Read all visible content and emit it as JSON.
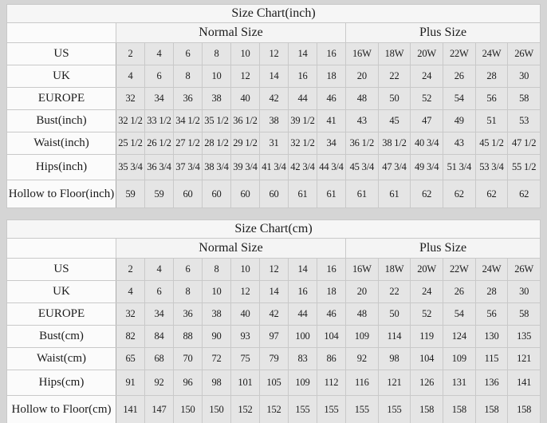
{
  "page": {
    "background": "#d5d5d5",
    "cell_gray": "#e5e5e5",
    "label_white": "#fbfbfb",
    "border_color": "#c9c9c9"
  },
  "chart_data": [
    {
      "type": "table",
      "title": "Size Chart(inch)",
      "column_groups": [
        {
          "label": "Normal Size",
          "span": 8
        },
        {
          "label": "Plus Size",
          "span": 6
        }
      ],
      "rows": [
        {
          "label": "US",
          "values": [
            "2",
            "4",
            "6",
            "8",
            "10",
            "12",
            "14",
            "16",
            "16W",
            "18W",
            "20W",
            "22W",
            "24W",
            "26W"
          ]
        },
        {
          "label": "UK",
          "values": [
            "4",
            "6",
            "8",
            "10",
            "12",
            "14",
            "16",
            "18",
            "20",
            "22",
            "24",
            "26",
            "28",
            "30"
          ]
        },
        {
          "label": "EUROPE",
          "values": [
            "32",
            "34",
            "36",
            "38",
            "40",
            "42",
            "44",
            "46",
            "48",
            "50",
            "52",
            "54",
            "56",
            "58"
          ]
        },
        {
          "label": "Bust(inch)",
          "values": [
            "32 1/2",
            "33 1/2",
            "34 1/2",
            "35 1/2",
            "36 1/2",
            "38",
            "39 1/2",
            "41",
            "43",
            "45",
            "47",
            "49",
            "51",
            "53"
          ]
        },
        {
          "label": "Waist(inch)",
          "values": [
            "25 1/2",
            "26 1/2",
            "27 1/2",
            "28 1/2",
            "29 1/2",
            "31",
            "32 1/2",
            "34",
            "36 1/2",
            "38 1/2",
            "40 3/4",
            "43",
            "45 1/2",
            "47 1/2"
          ]
        },
        {
          "label": "Hips(inch)",
          "values": [
            "35 3/4",
            "36 3/4",
            "37 3/4",
            "38 3/4",
            "39 3/4",
            "41 3/4",
            "42 3/4",
            "44 3/4",
            "45 3/4",
            "47 3/4",
            "49 3/4",
            "51 3/4",
            "53 3/4",
            "55 1/2"
          ]
        },
        {
          "label": "Hollow to Floor(inch)",
          "values": [
            "59",
            "59",
            "60",
            "60",
            "60",
            "60",
            "61",
            "61",
            "61",
            "61",
            "62",
            "62",
            "62",
            "62"
          ]
        }
      ]
    },
    {
      "type": "table",
      "title": "Size Chart(cm)",
      "column_groups": [
        {
          "label": "Normal Size",
          "span": 8
        },
        {
          "label": "Plus Size",
          "span": 6
        }
      ],
      "rows": [
        {
          "label": "US",
          "values": [
            "2",
            "4",
            "6",
            "8",
            "10",
            "12",
            "14",
            "16",
            "16W",
            "18W",
            "20W",
            "22W",
            "24W",
            "26W"
          ]
        },
        {
          "label": "UK",
          "values": [
            "4",
            "6",
            "8",
            "10",
            "12",
            "14",
            "16",
            "18",
            "20",
            "22",
            "24",
            "26",
            "28",
            "30"
          ]
        },
        {
          "label": "EUROPE",
          "values": [
            "32",
            "34",
            "36",
            "38",
            "40",
            "42",
            "44",
            "46",
            "48",
            "50",
            "52",
            "54",
            "56",
            "58"
          ]
        },
        {
          "label": "Bust(cm)",
          "values": [
            "82",
            "84",
            "88",
            "90",
            "93",
            "97",
            "100",
            "104",
            "109",
            "114",
            "119",
            "124",
            "130",
            "135"
          ]
        },
        {
          "label": "Waist(cm)",
          "values": [
            "65",
            "68",
            "70",
            "72",
            "75",
            "79",
            "83",
            "86",
            "92",
            "98",
            "104",
            "109",
            "115",
            "121"
          ]
        },
        {
          "label": "Hips(cm)",
          "values": [
            "91",
            "92",
            "96",
            "98",
            "101",
            "105",
            "109",
            "112",
            "116",
            "121",
            "126",
            "131",
            "136",
            "141"
          ]
        },
        {
          "label": "Hollow to Floor(cm)",
          "values": [
            "141",
            "147",
            "150",
            "150",
            "152",
            "152",
            "155",
            "155",
            "155",
            "155",
            "158",
            "158",
            "158",
            "158"
          ]
        }
      ]
    }
  ]
}
